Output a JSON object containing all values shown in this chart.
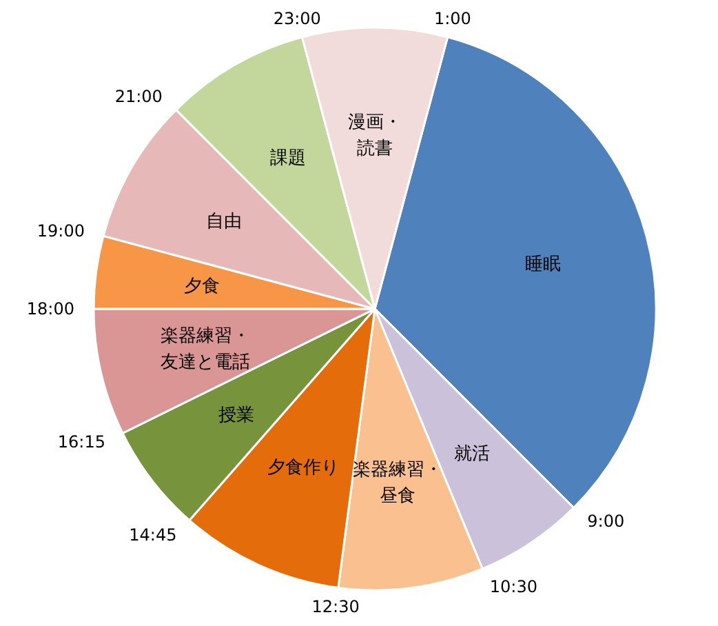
{
  "chart_data": {
    "type": "pie",
    "categories": [
      "睡眠",
      "就活",
      "楽器練習・昼食",
      "夕食作り",
      "授業",
      "楽器練習・友達と電話",
      "夕食",
      "自由",
      "課題",
      "漫画・読書"
    ],
    "values": [
      33.33,
      6.25,
      8.33,
      9.38,
      6.25,
      7.29,
      4.17,
      8.33,
      8.33,
      8.33
    ],
    "colors": [
      "#4f81bd",
      "#ccc1da",
      "#fac090",
      "#e46c0a",
      "#77933c",
      "#d99694",
      "#f79646",
      "#e6b9b8",
      "#c3d69b",
      "#f2dcdb"
    ],
    "annotations": [
      "1:00",
      "9:00",
      "10:30",
      "12:30",
      "14:45",
      "16:15",
      "18:00",
      "19:00",
      "21:00",
      "23:00"
    ]
  }
}
